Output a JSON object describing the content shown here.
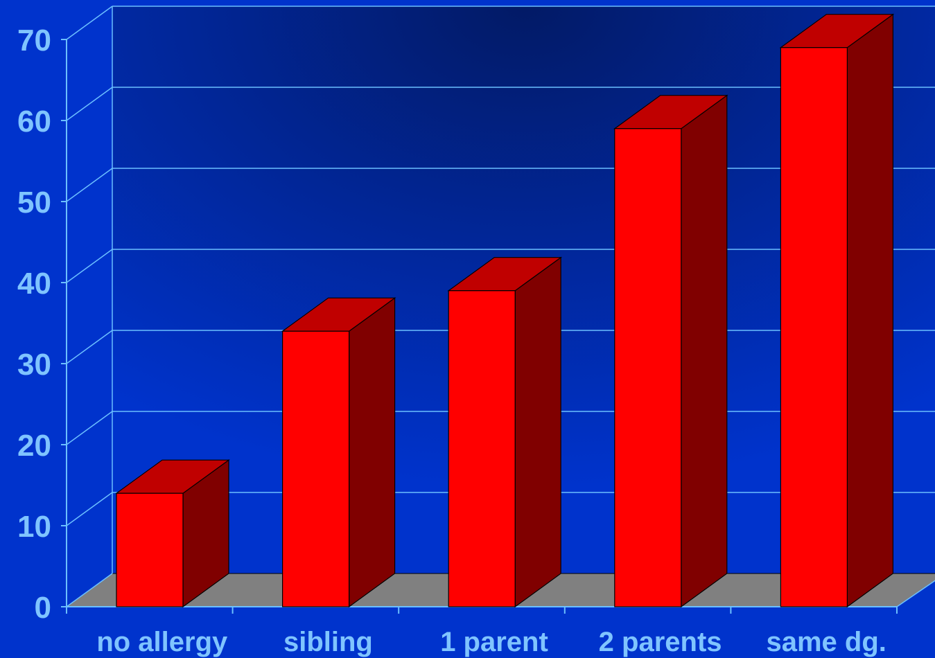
{
  "chart_data": {
    "type": "bar",
    "style": "3d",
    "title": "",
    "xlabel": "",
    "ylabel": "",
    "categories": [
      "no allergy",
      "sibling",
      "1 parent",
      "2 parents",
      "same dg."
    ],
    "values": [
      14,
      34,
      39,
      59,
      69
    ],
    "ylim": [
      0,
      70
    ],
    "yticks": [
      "0",
      "10",
      "20",
      "30",
      "40",
      "50",
      "60",
      "70"
    ],
    "grid": true,
    "legend": "none",
    "colors": {
      "background": "#0033cc",
      "wall_dark": "#021a66",
      "gridline": "#6cc0ff",
      "tick_label": "#7fc4ff",
      "floor": "#808080",
      "bar_front": "#ff0000",
      "bar_top": "#c00000",
      "bar_side": "#800000"
    }
  }
}
